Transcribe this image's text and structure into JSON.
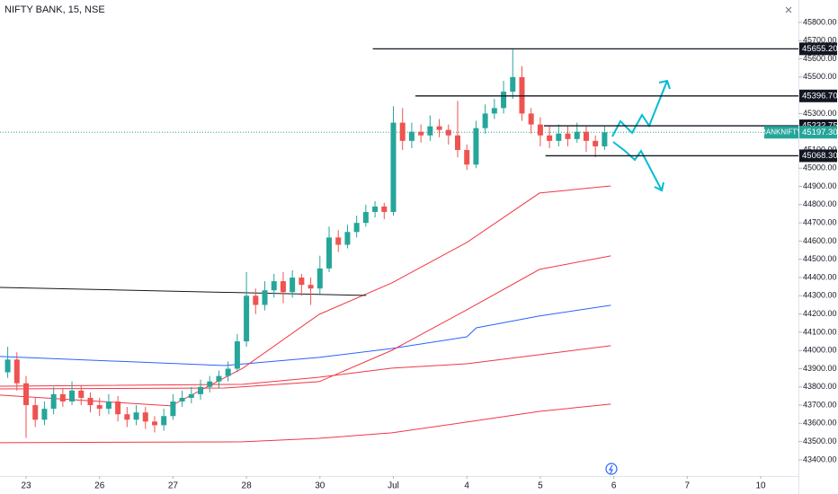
{
  "chart_data": {
    "type": "candlestick",
    "title": "NIFTY BANK, 15, NSE",
    "symbol_label": "BANKNIFTY",
    "last_price": {
      "value": 45197.3,
      "label": "45197.30"
    },
    "up_color": "#26a69a",
    "down_color": "#ef5350",
    "candles": {
      "x": [
        -0.25,
        -0.125,
        0,
        0.125,
        0.25,
        0.375,
        0.5,
        0.625,
        0.75,
        0.875,
        1,
        1.125,
        1.25,
        1.375,
        1.5,
        1.625,
        1.75,
        1.875,
        2,
        2.125,
        2.25,
        2.375,
        2.5,
        2.625,
        2.75,
        2.875,
        3,
        3.125,
        3.25,
        3.375,
        3.5,
        3.625,
        3.75,
        3.875,
        4,
        4.125,
        4.25,
        4.375,
        4.5,
        4.625,
        4.75,
        4.875,
        5,
        5.125,
        5.25,
        5.375,
        5.5,
        5.625,
        5.75,
        5.875,
        6,
        6.125,
        6.25,
        6.375,
        6.5,
        6.625,
        6.75,
        6.875,
        7,
        7.125,
        7.25,
        7.375,
        7.5,
        7.625,
        7.75,
        7.875
      ],
      "open": [
        43880,
        43950,
        43820,
        43700,
        43620,
        43680,
        43760,
        43720,
        43780,
        43740,
        43700,
        43680,
        43720,
        43650,
        43620,
        43660,
        43610,
        43590,
        43640,
        43720,
        43740,
        43760,
        43800,
        43830,
        43860,
        43900,
        44050,
        44300,
        44250,
        44330,
        44380,
        44320,
        44400,
        44360,
        44340,
        44450,
        44620,
        44580,
        44650,
        44700,
        44760,
        44790,
        44760,
        45250,
        45150,
        45200,
        45180,
        45230,
        45210,
        45180,
        45100,
        45020,
        45220,
        45300,
        45330,
        45420,
        45500,
        45300,
        45240,
        45180,
        45150,
        45190,
        45160,
        45200,
        45150,
        45120
      ],
      "high": [
        44020,
        43990,
        43860,
        43740,
        43720,
        43800,
        43790,
        43830,
        43810,
        43770,
        43740,
        43760,
        43750,
        43690,
        43700,
        43690,
        43640,
        43680,
        43760,
        43780,
        43800,
        43840,
        43860,
        43890,
        43940,
        44090,
        44430,
        44340,
        44380,
        44420,
        44430,
        44440,
        44420,
        44400,
        44520,
        44680,
        44660,
        44690,
        44740,
        44800,
        44820,
        44810,
        45340,
        45330,
        45250,
        45240,
        45290,
        45270,
        45240,
        45370,
        45130,
        45260,
        45350,
        45380,
        45480,
        45655.2,
        45560,
        45330,
        45280,
        45230,
        45240,
        45230,
        45250,
        45230,
        45180,
        45230
      ],
      "low": [
        43850,
        43780,
        43520,
        43580,
        43590,
        43650,
        43690,
        43700,
        43700,
        43660,
        43640,
        43650,
        43610,
        43580,
        43590,
        43570,
        43550,
        43560,
        43620,
        43690,
        43710,
        43730,
        43770,
        43790,
        43830,
        43880,
        44020,
        44200,
        44220,
        44290,
        44260,
        44290,
        44300,
        44250,
        44310,
        44430,
        44540,
        44560,
        44620,
        44680,
        44730,
        44720,
        44740,
        45100,
        45110,
        45140,
        45150,
        45170,
        45130,
        45060,
        44990,
        45000,
        45190,
        45270,
        45300,
        45380,
        45260,
        45190,
        45120,
        45110,
        45120,
        45120,
        45140,
        45090,
        45060,
        45100
      ],
      "close": [
        43950,
        43820,
        43700,
        43620,
        43680,
        43760,
        43720,
        43780,
        43740,
        43700,
        43680,
        43720,
        43650,
        43620,
        43660,
        43610,
        43590,
        43640,
        43720,
        43740,
        43760,
        43800,
        43830,
        43860,
        43900,
        44050,
        44300,
        44250,
        44330,
        44380,
        44320,
        44400,
        44360,
        44340,
        44450,
        44620,
        44580,
        44650,
        44700,
        44760,
        44790,
        44760,
        45250,
        45150,
        45200,
        45180,
        45230,
        45210,
        45180,
        45100,
        45020,
        45220,
        45300,
        45330,
        45420,
        45500,
        45300,
        45240,
        45180,
        45150,
        45190,
        45160,
        45200,
        45150,
        45120,
        45197.3
      ]
    },
    "lines": [
      {
        "color": "#2962ff",
        "x": [
          -0.355,
          2.7,
          3.99,
          4.98,
          6.0,
          6.13,
          6.99,
          7.96
        ],
        "values": [
          43967,
          43917,
          43962,
          44011,
          44075,
          44124,
          44189,
          44248
        ]
      },
      {
        "color": "#f23645",
        "x": [
          -0.355,
          1.97,
          2.95,
          3.99,
          4.98,
          6.0,
          6.99,
          7.96
        ],
        "values": [
          43755,
          43696,
          43903,
          44198,
          44371,
          44593,
          44864,
          44903
        ]
      },
      {
        "color": "#f23645",
        "x": [
          -0.355,
          2.7,
          3.99,
          4.98,
          6.0,
          6.99,
          7.96
        ],
        "values": [
          43789,
          43794,
          43829,
          44001,
          44223,
          44445,
          44519
        ]
      },
      {
        "color": "#f23645",
        "x": [
          -0.355,
          2.95,
          3.99,
          4.98,
          6.0,
          6.99,
          7.96
        ],
        "values": [
          43804,
          43814,
          43853,
          43903,
          43927,
          43977,
          44026
        ]
      },
      {
        "color": "#f23645",
        "x": [
          -0.355,
          2.95,
          3.99,
          4.98,
          6.0,
          6.99,
          7.96
        ],
        "values": [
          43494,
          43499,
          43518,
          43548,
          43607,
          43666,
          43706
        ]
      }
    ],
    "trendline": {
      "x": [
        -0.355,
        4.63
      ],
      "values": [
        44346,
        44302
      ]
    },
    "levels": [
      {
        "value": 45655.2,
        "label": "45655.20",
        "x_start": 4.72
      },
      {
        "value": 45396.7,
        "label": "45396.70",
        "x_start": 5.3
      },
      {
        "value": 45232.75,
        "label": "45232.75",
        "x_start": 7.05
      },
      {
        "value": 45068.3,
        "label": "45068.30",
        "x_start": 7.07
      }
    ],
    "xlim": [
      -0.355,
      10.514
    ],
    "ylim": [
      43311,
      45923
    ],
    "xticks": [
      {
        "value": 0,
        "label": "23"
      },
      {
        "value": 1,
        "label": "26"
      },
      {
        "value": 2,
        "label": "27"
      },
      {
        "value": 3,
        "label": "28"
      },
      {
        "value": 4,
        "label": "30"
      },
      {
        "value": 5,
        "label": "Jul"
      },
      {
        "value": 6,
        "label": "4"
      },
      {
        "value": 7,
        "label": "5"
      },
      {
        "value": 8,
        "label": "6"
      },
      {
        "value": 9,
        "label": "7"
      },
      {
        "value": 10,
        "label": "10"
      }
    ],
    "yticks": [
      {
        "value": 45800,
        "label": "45800.00"
      },
      {
        "value": 45700,
        "label": "45700.00"
      },
      {
        "value": 45600,
        "label": "45600.00"
      },
      {
        "value": 45500,
        "label": "45500.00"
      },
      {
        "value": 45300,
        "label": "45300.00"
      },
      {
        "value": 45100,
        "label": "45100.00"
      },
      {
        "value": 45000,
        "label": "45000.00"
      },
      {
        "value": 44900,
        "label": "44900.00"
      },
      {
        "value": 44800,
        "label": "44800.00"
      },
      {
        "value": 44700,
        "label": "44700.00"
      },
      {
        "value": 44600,
        "label": "44600.00"
      },
      {
        "value": 44500,
        "label": "44500.00"
      },
      {
        "value": 44400,
        "label": "44400.00"
      },
      {
        "value": 44300,
        "label": "44300.00"
      },
      {
        "value": 44200,
        "label": "44200.00"
      },
      {
        "value": 44100,
        "label": "44100.00"
      },
      {
        "value": 44000,
        "label": "44000.00"
      },
      {
        "value": 43900,
        "label": "43900.00"
      },
      {
        "value": 43800,
        "label": "43800.00"
      },
      {
        "value": 43700,
        "label": "43700.00"
      },
      {
        "value": 43600,
        "label": "43600.00"
      },
      {
        "value": 43500,
        "label": "43500.00"
      },
      {
        "value": 43400,
        "label": "43400.00"
      }
    ]
  }
}
